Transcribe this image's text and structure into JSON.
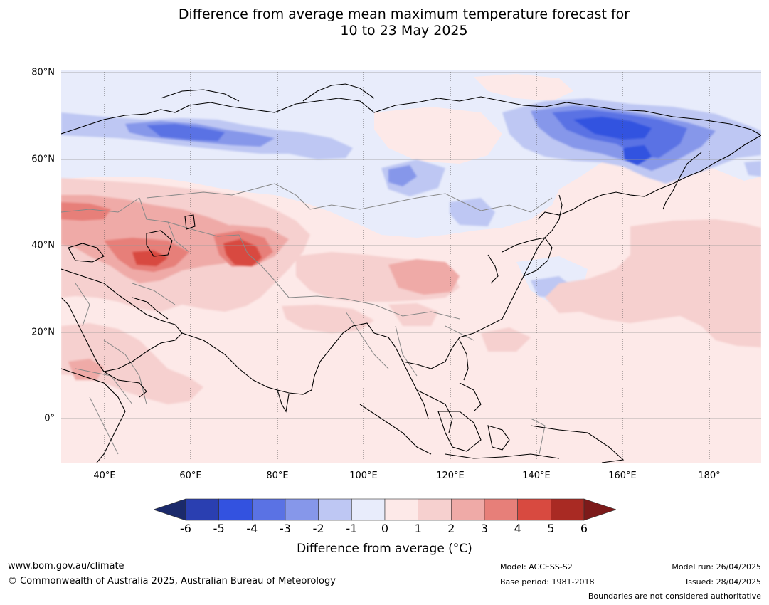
{
  "title_line1": "Difference from average mean maximum temperature forecast for",
  "title_line2": "10 to 23 May 2025",
  "lat_labels": [
    "80°N",
    "60°N",
    "40°N",
    "20°N",
    "0°"
  ],
  "lon_labels": [
    "40°E",
    "60°E",
    "80°E",
    "100°E",
    "120°E",
    "140°E",
    "160°E",
    "180°"
  ],
  "colorbar": {
    "ticks": [
      "-6",
      "-5",
      "-4",
      "-3",
      "-2",
      "-1",
      "0",
      "1",
      "2",
      "3",
      "4",
      "5",
      "6"
    ],
    "title": "Difference from average (°C)",
    "colors": [
      "#1b2a6b",
      "#2a3fb1",
      "#3352e0",
      "#5a72e4",
      "#8697ea",
      "#bec7f3",
      "#e8ecfb",
      "#fde9e8",
      "#f6d0cf",
      "#efaaa7",
      "#e77f79",
      "#d84a40",
      "#a92a23",
      "#7c1a1a"
    ]
  },
  "footer": {
    "website": "www.bom.gov.au/climate",
    "copyright": "© Commonwealth of Australia 2025, Australian Bureau of Meteorology",
    "model": "Model: ACCESS-S2",
    "base_period": "Base period: 1981-2018",
    "model_run": "Model run: 26/04/2025",
    "issued": "Issued: 28/04/2025",
    "disclaimer": "Boundaries are not considered authoritative"
  }
}
